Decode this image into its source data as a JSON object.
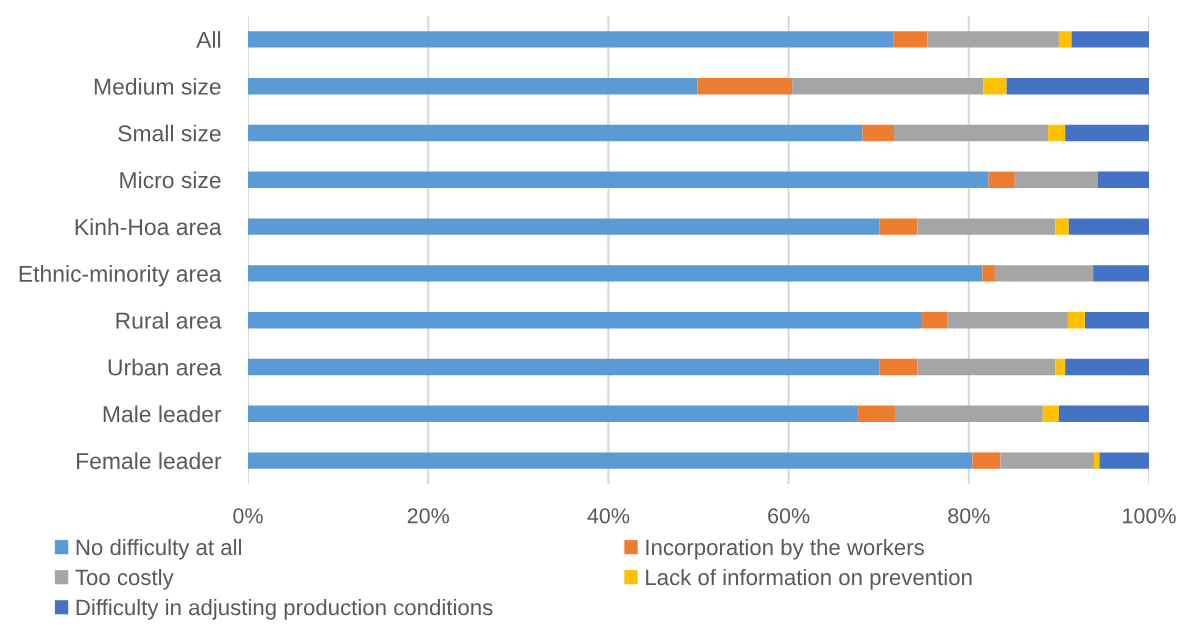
{
  "chart_data": {
    "type": "bar",
    "orientation": "horizontal",
    "stacked": true,
    "categories": [
      "All",
      "Medium size",
      "Small size",
      "Micro size",
      "Kinh-Hoa area",
      "Ethnic-minority area",
      "Rural area",
      "Urban area",
      "Male leader",
      "Female leader"
    ],
    "series": [
      {
        "name": "No difficulty at all",
        "color": "#5b9bd5",
        "values": [
          71.6,
          49.9,
          68.2,
          82.2,
          70.1,
          81.5,
          74.7,
          70.1,
          67.6,
          80.4
        ]
      },
      {
        "name": "Incorporation by the workers",
        "color": "#ed7d31",
        "values": [
          3.8,
          10.5,
          3.5,
          2.9,
          4.2,
          1.4,
          2.9,
          4.2,
          4.2,
          3.1
        ]
      },
      {
        "name": "Too costly",
        "color": "#a5a5a5",
        "values": [
          14.6,
          21.2,
          17.1,
          9.2,
          15.3,
          10.9,
          13.4,
          15.3,
          16.4,
          10.4
        ]
      },
      {
        "name": "Lack of information on prevention",
        "color": "#ffc000",
        "values": [
          1.4,
          2.6,
          1.9,
          null,
          1.5,
          null,
          1.9,
          1.1,
          1.8,
          0.6
        ]
      },
      {
        "name": "Difficulty in adjusting production conditions",
        "color": "#4472c4",
        "values": [
          8.6,
          15.8,
          9.3,
          5.7,
          8.9,
          6.2,
          7.1,
          9.3,
          10.0,
          5.5
        ]
      }
    ],
    "xlim": [
      0,
      100
    ],
    "xticks": [
      {
        "value": 0,
        "label": "0%"
      },
      {
        "value": 20,
        "label": "20%"
      },
      {
        "value": 40,
        "label": "40%"
      },
      {
        "value": 60,
        "label": "60%"
      },
      {
        "value": 80,
        "label": "80%"
      },
      {
        "value": 100,
        "label": "100%"
      }
    ],
    "grid": "x",
    "legend": "bottom"
  }
}
